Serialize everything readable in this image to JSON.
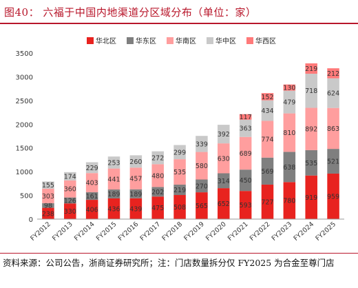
{
  "header": {
    "title": "图40：  六福于中国内地渠道分区域分布（单位：家）"
  },
  "footer": {
    "source": "资料来源：公司公告，浙商证券研究所；注：门店数量拆分仅 FY2025 为合金至尊门店"
  },
  "chart_data": {
    "type": "bar",
    "stacked": true,
    "title": "",
    "xlabel": "",
    "ylabel": "",
    "ylim": [
      0,
      3500
    ],
    "yticks": [
      0,
      500,
      1000,
      1500,
      2000,
      2500,
      3000,
      3500
    ],
    "grid": false,
    "legend_position": "top",
    "categories": [
      "FY2012",
      "FY2013",
      "FY2014",
      "FY2015",
      "FY2016",
      "FY2017",
      "FY2018",
      "FY2019",
      "FY2020",
      "FY2021",
      "FY2022",
      "FY2023",
      "FY2024",
      "FY2025"
    ],
    "series": [
      {
        "name": "华北区",
        "color": "#e8231f",
        "values": [
          238,
          330,
          406,
          436,
          439,
          475,
          508,
          565,
          652,
          593,
          727,
          780,
          919,
          959
        ]
      },
      {
        "name": "华东区",
        "color": "#7f7f7f",
        "values": [
          98,
          126,
          161,
          189,
          189,
          202,
          219,
          270,
          314,
          450,
          569,
          638,
          535,
          521
        ]
      },
      {
        "name": "华南区",
        "color": "#ff9e9e",
        "values": [
          303,
          360,
          403,
          441,
          457,
          480,
          535,
          580,
          630,
          689,
          774,
          810,
          892,
          863
        ]
      },
      {
        "name": "华中区",
        "color": "#c9c9c9",
        "values": [
          155,
          174,
          229,
          253,
          260,
          272,
          299,
          339,
          392,
          363,
          434,
          479,
          718,
          624
        ]
      },
      {
        "name": "华西区",
        "color": "#ff7a7a",
        "values": [
          0,
          0,
          0,
          0,
          0,
          0,
          0,
          0,
          0,
          117,
          152,
          130,
          219,
          212
        ]
      }
    ]
  }
}
